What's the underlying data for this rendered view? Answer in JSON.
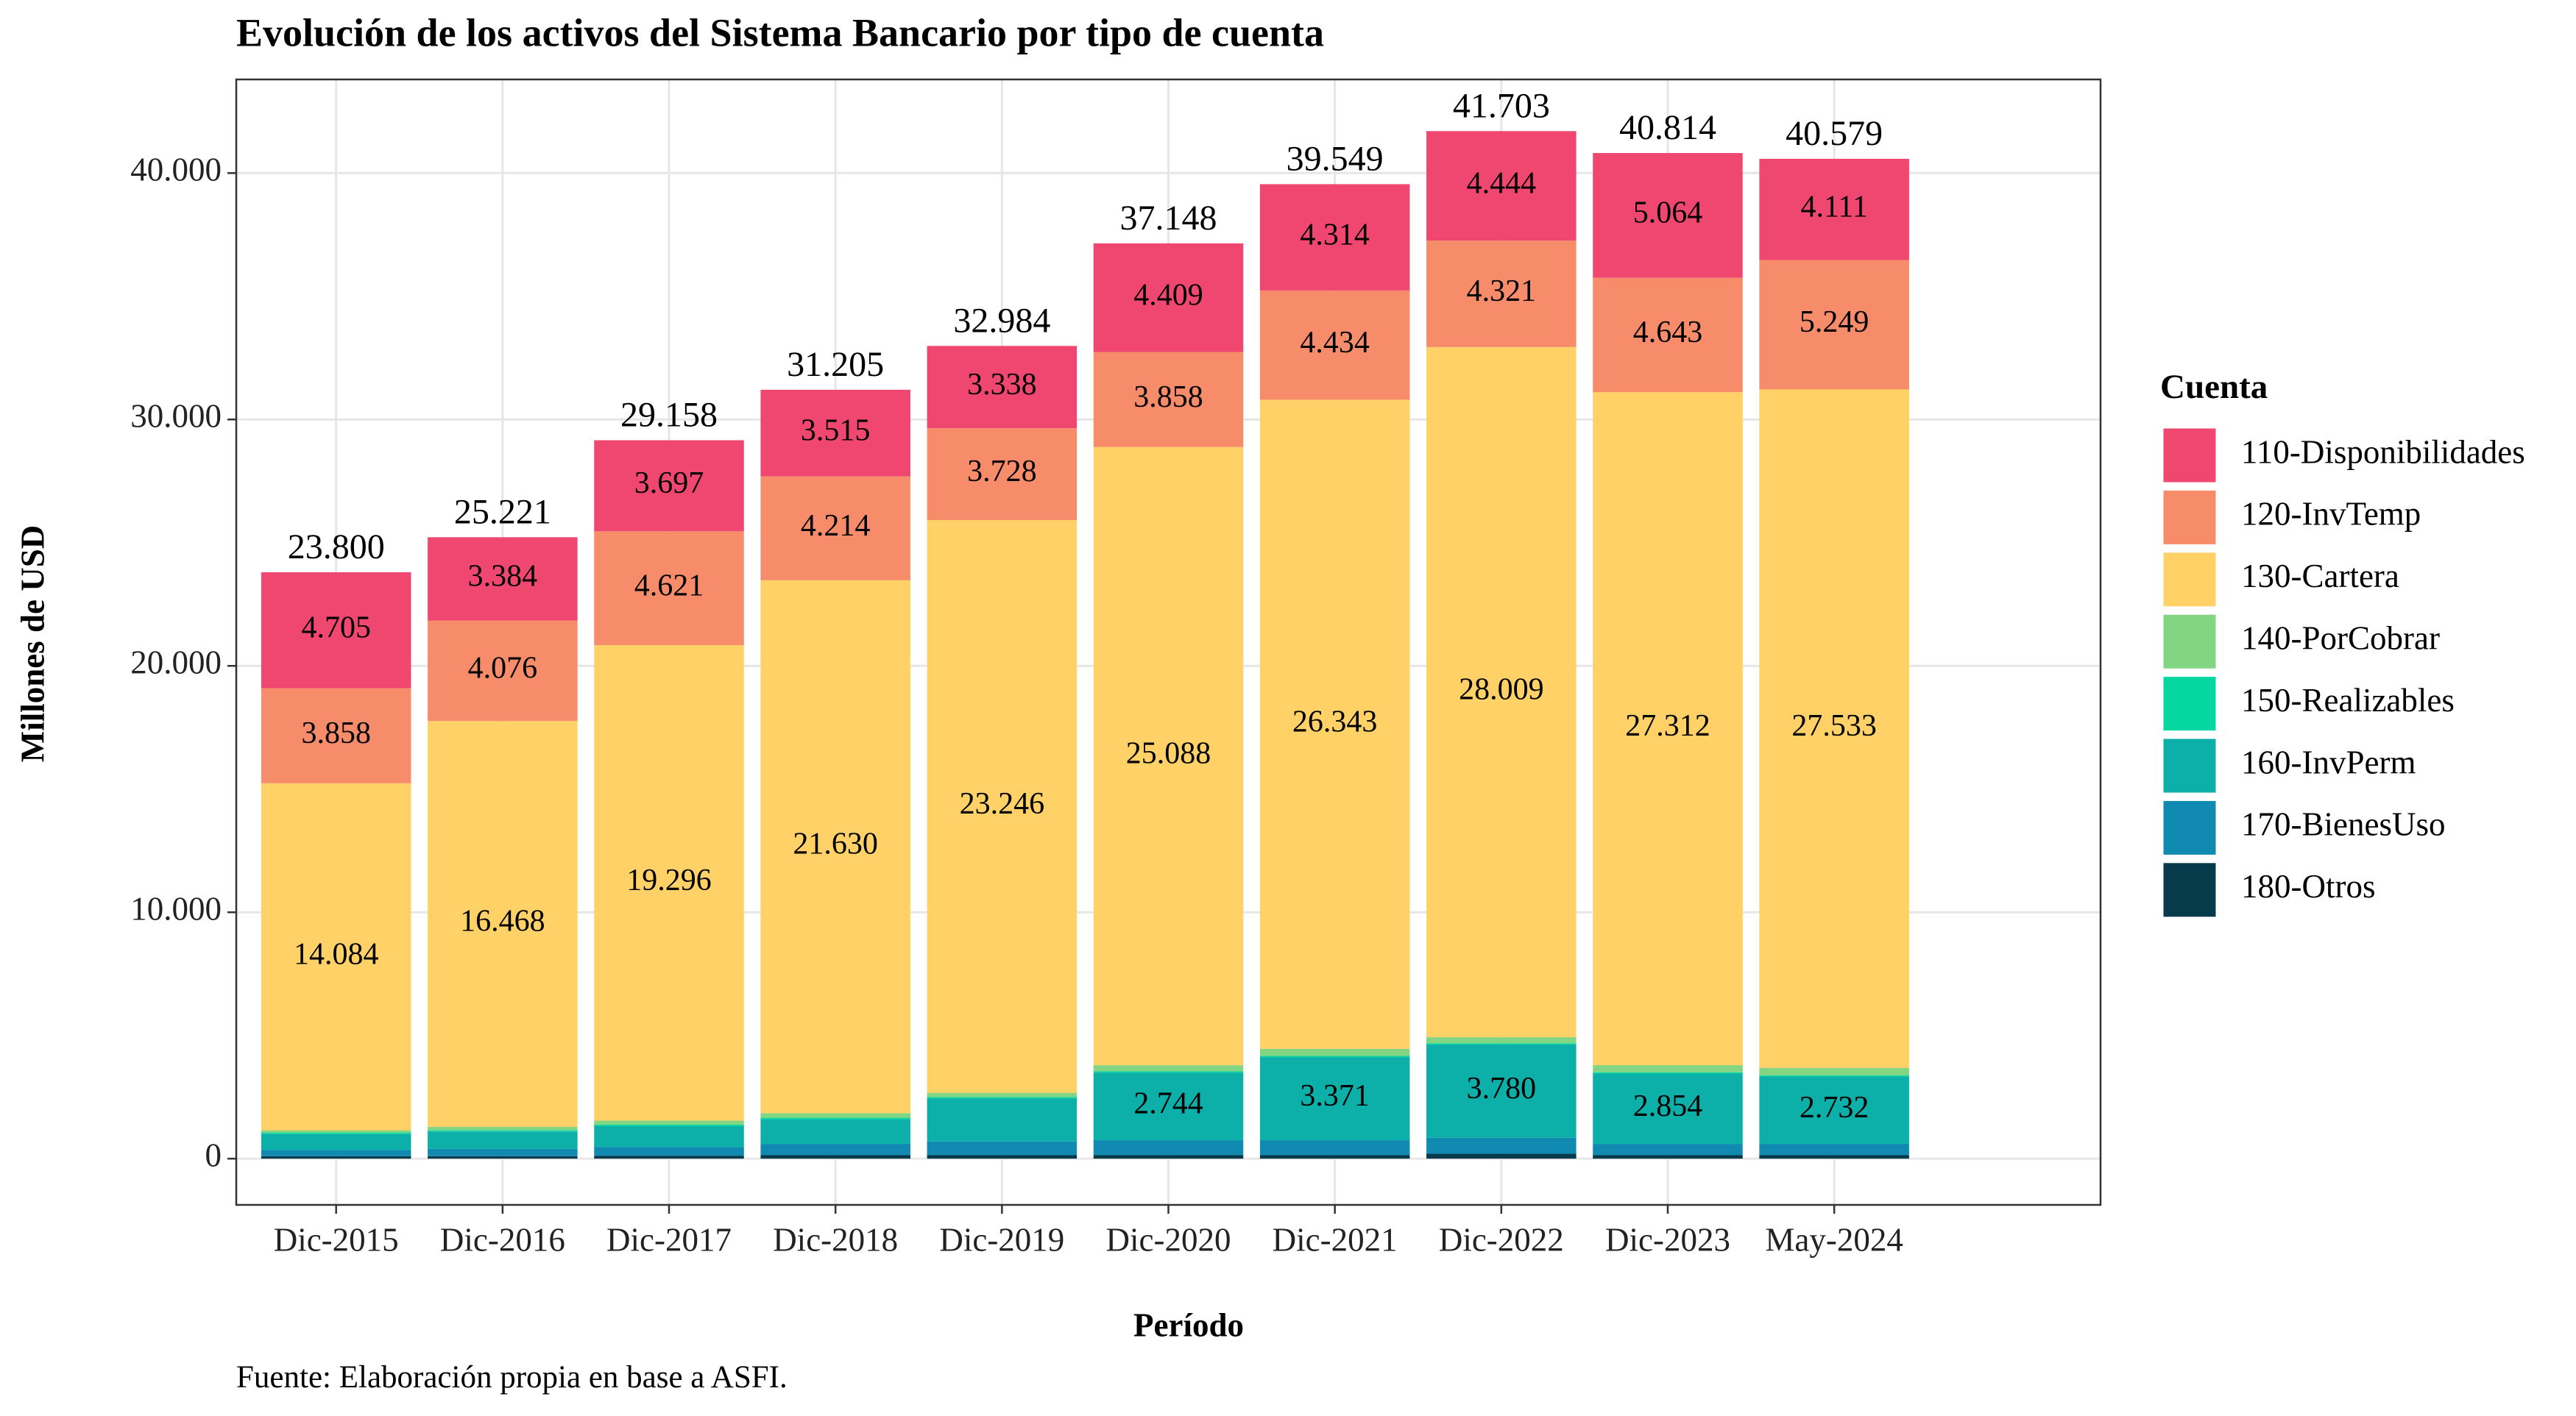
{
  "chart_data": {
    "type": "stacked_bar",
    "title": "Evolución de los activos del Sistema Bancario por tipo de cuenta",
    "x_label": "Período",
    "y_label": "Millones de USD",
    "caption": "Fuente: Elaboración propia en base a ASFI.",
    "legend_title": "Cuenta",
    "legend_position": "right",
    "grid": true,
    "categories": [
      "Dic-2015",
      "Dic-2016",
      "Dic-2017",
      "Dic-2018",
      "Dic-2019",
      "Dic-2020",
      "Dic-2021",
      "Dic-2022",
      "Dic-2023",
      "May-2024"
    ],
    "ylim": [
      -1876,
      43800
    ],
    "yticks": [
      0,
      {
        "value": 10000,
        "label": "10.000"
      },
      {
        "value": 20000,
        "label": "20.000"
      },
      {
        "value": 30000,
        "label": "30.000"
      },
      {
        "value": 40000,
        "label": "40.000"
      }
    ],
    "series": [
      {
        "name": "110-Disponibilidades",
        "color": "#EF476F",
        "values": [
          4705,
          3384,
          3697,
          3515,
          3338,
          4409,
          4314,
          4444,
          5064,
          4111
        ],
        "value_labels": [
          "4.705",
          "3.384",
          "3.697",
          "3.515",
          "3.338",
          "4.409",
          "4.314",
          "4.444",
          "5.064",
          "4.111"
        ]
      },
      {
        "name": "120-InvTemp",
        "color": "#F78C6B",
        "values": [
          3858,
          4076,
          4621,
          4214,
          3728,
          3858,
          4434,
          4321,
          4643,
          5249
        ],
        "value_labels": [
          "3.858",
          "4.076",
          "4.621",
          "4.214",
          "3.728",
          "3.858",
          "4.434",
          "4.321",
          "4.643",
          "5.249"
        ]
      },
      {
        "name": "130-Cartera",
        "color": "#FFD166",
        "values": [
          14084,
          16468,
          19296,
          21630,
          23246,
          25088,
          26343,
          28009,
          27312,
          27533
        ],
        "value_labels": [
          "14.084",
          "16.468",
          "19.296",
          "21.630",
          "23.246",
          "25.088",
          "26.343",
          "28.009",
          "27.312",
          "27.533"
        ]
      },
      {
        "name": "140-PorCobrar",
        "color": "#83D483",
        "values": [
          103,
          143,
          164,
          186,
          172,
          249,
          287,
          249,
          291,
          304
        ]
      },
      {
        "name": "150-Realizables",
        "color": "#06D6A0",
        "values": [
          50,
          50,
          60,
          60,
          50,
          50,
          50,
          50,
          50,
          50
        ]
      },
      {
        "name": "160-InvPerm",
        "color": "#0CB0A9",
        "values": [
          650,
          700,
          850,
          1000,
          1750,
          2744,
          3371,
          3780,
          2854,
          2732
        ],
        "value_labels": [
          null,
          null,
          null,
          null,
          null,
          "2.744",
          "3.371",
          "3.780",
          "2.854",
          "2.732"
        ]
      },
      {
        "name": "170-BienesUso",
        "color": "#118AB2",
        "values": [
          250,
          300,
          350,
          450,
          550,
          600,
          600,
          650,
          450,
          450
        ]
      },
      {
        "name": "180-Otros",
        "color": "#073B4C",
        "values": [
          100,
          100,
          120,
          150,
          150,
          150,
          150,
          200,
          150,
          150
        ]
      }
    ],
    "totals": {
      "values": [
        23800,
        25221,
        29158,
        31205,
        32984,
        37148,
        39549,
        41703,
        40814,
        40579
      ],
      "value_labels": [
        "23.800",
        "25.221",
        "29.158",
        "31.205",
        "32.984",
        "37.148",
        "39.549",
        "41.703",
        "40.814",
        "40.579"
      ]
    }
  }
}
